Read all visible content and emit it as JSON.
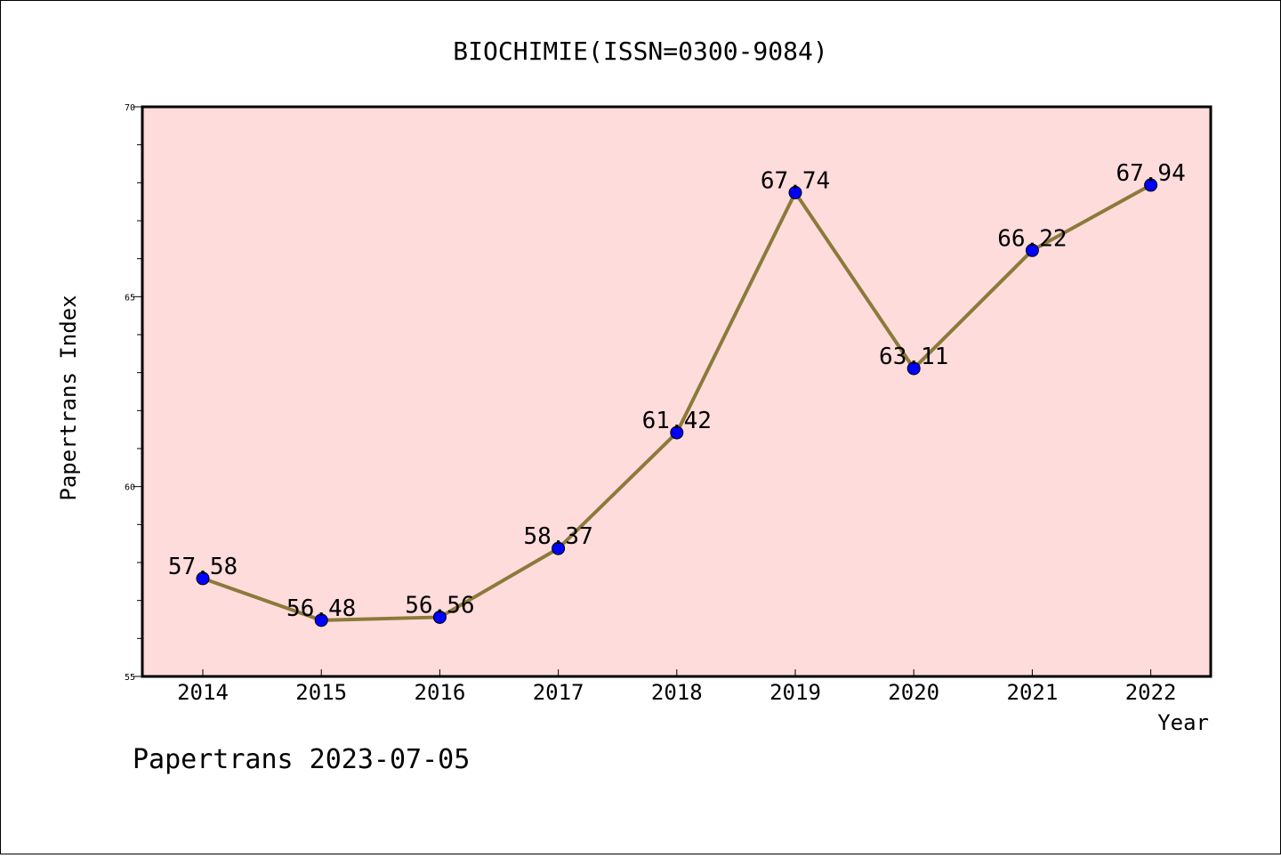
{
  "chart_data": {
    "type": "line",
    "title": "BIOCHIMIE(ISSN=0300-9084)",
    "xlabel": "Year",
    "ylabel": "Papertrans Index",
    "x": [
      "2014",
      "2015",
      "2016",
      "2017",
      "2018",
      "2019",
      "2020",
      "2021",
      "2022"
    ],
    "values": [
      57.58,
      56.48,
      56.56,
      58.37,
      61.42,
      67.74,
      63.11,
      66.22,
      67.94
    ],
    "value_labels": [
      "57.58",
      "56.48",
      "56.56",
      "58.37",
      "61.42",
      "67.74",
      "63.11",
      "66.22",
      "67.94"
    ],
    "ylim": [
      55,
      70
    ],
    "yticks": [
      "55",
      "60",
      "65",
      "70"
    ],
    "grid": false,
    "legend": "none",
    "colors": {
      "plot_background": "#ffdcdc",
      "line": "#8b7a3a",
      "marker": "#0000ff"
    }
  },
  "footer": {
    "text": "Papertrans 2023-07-05"
  }
}
